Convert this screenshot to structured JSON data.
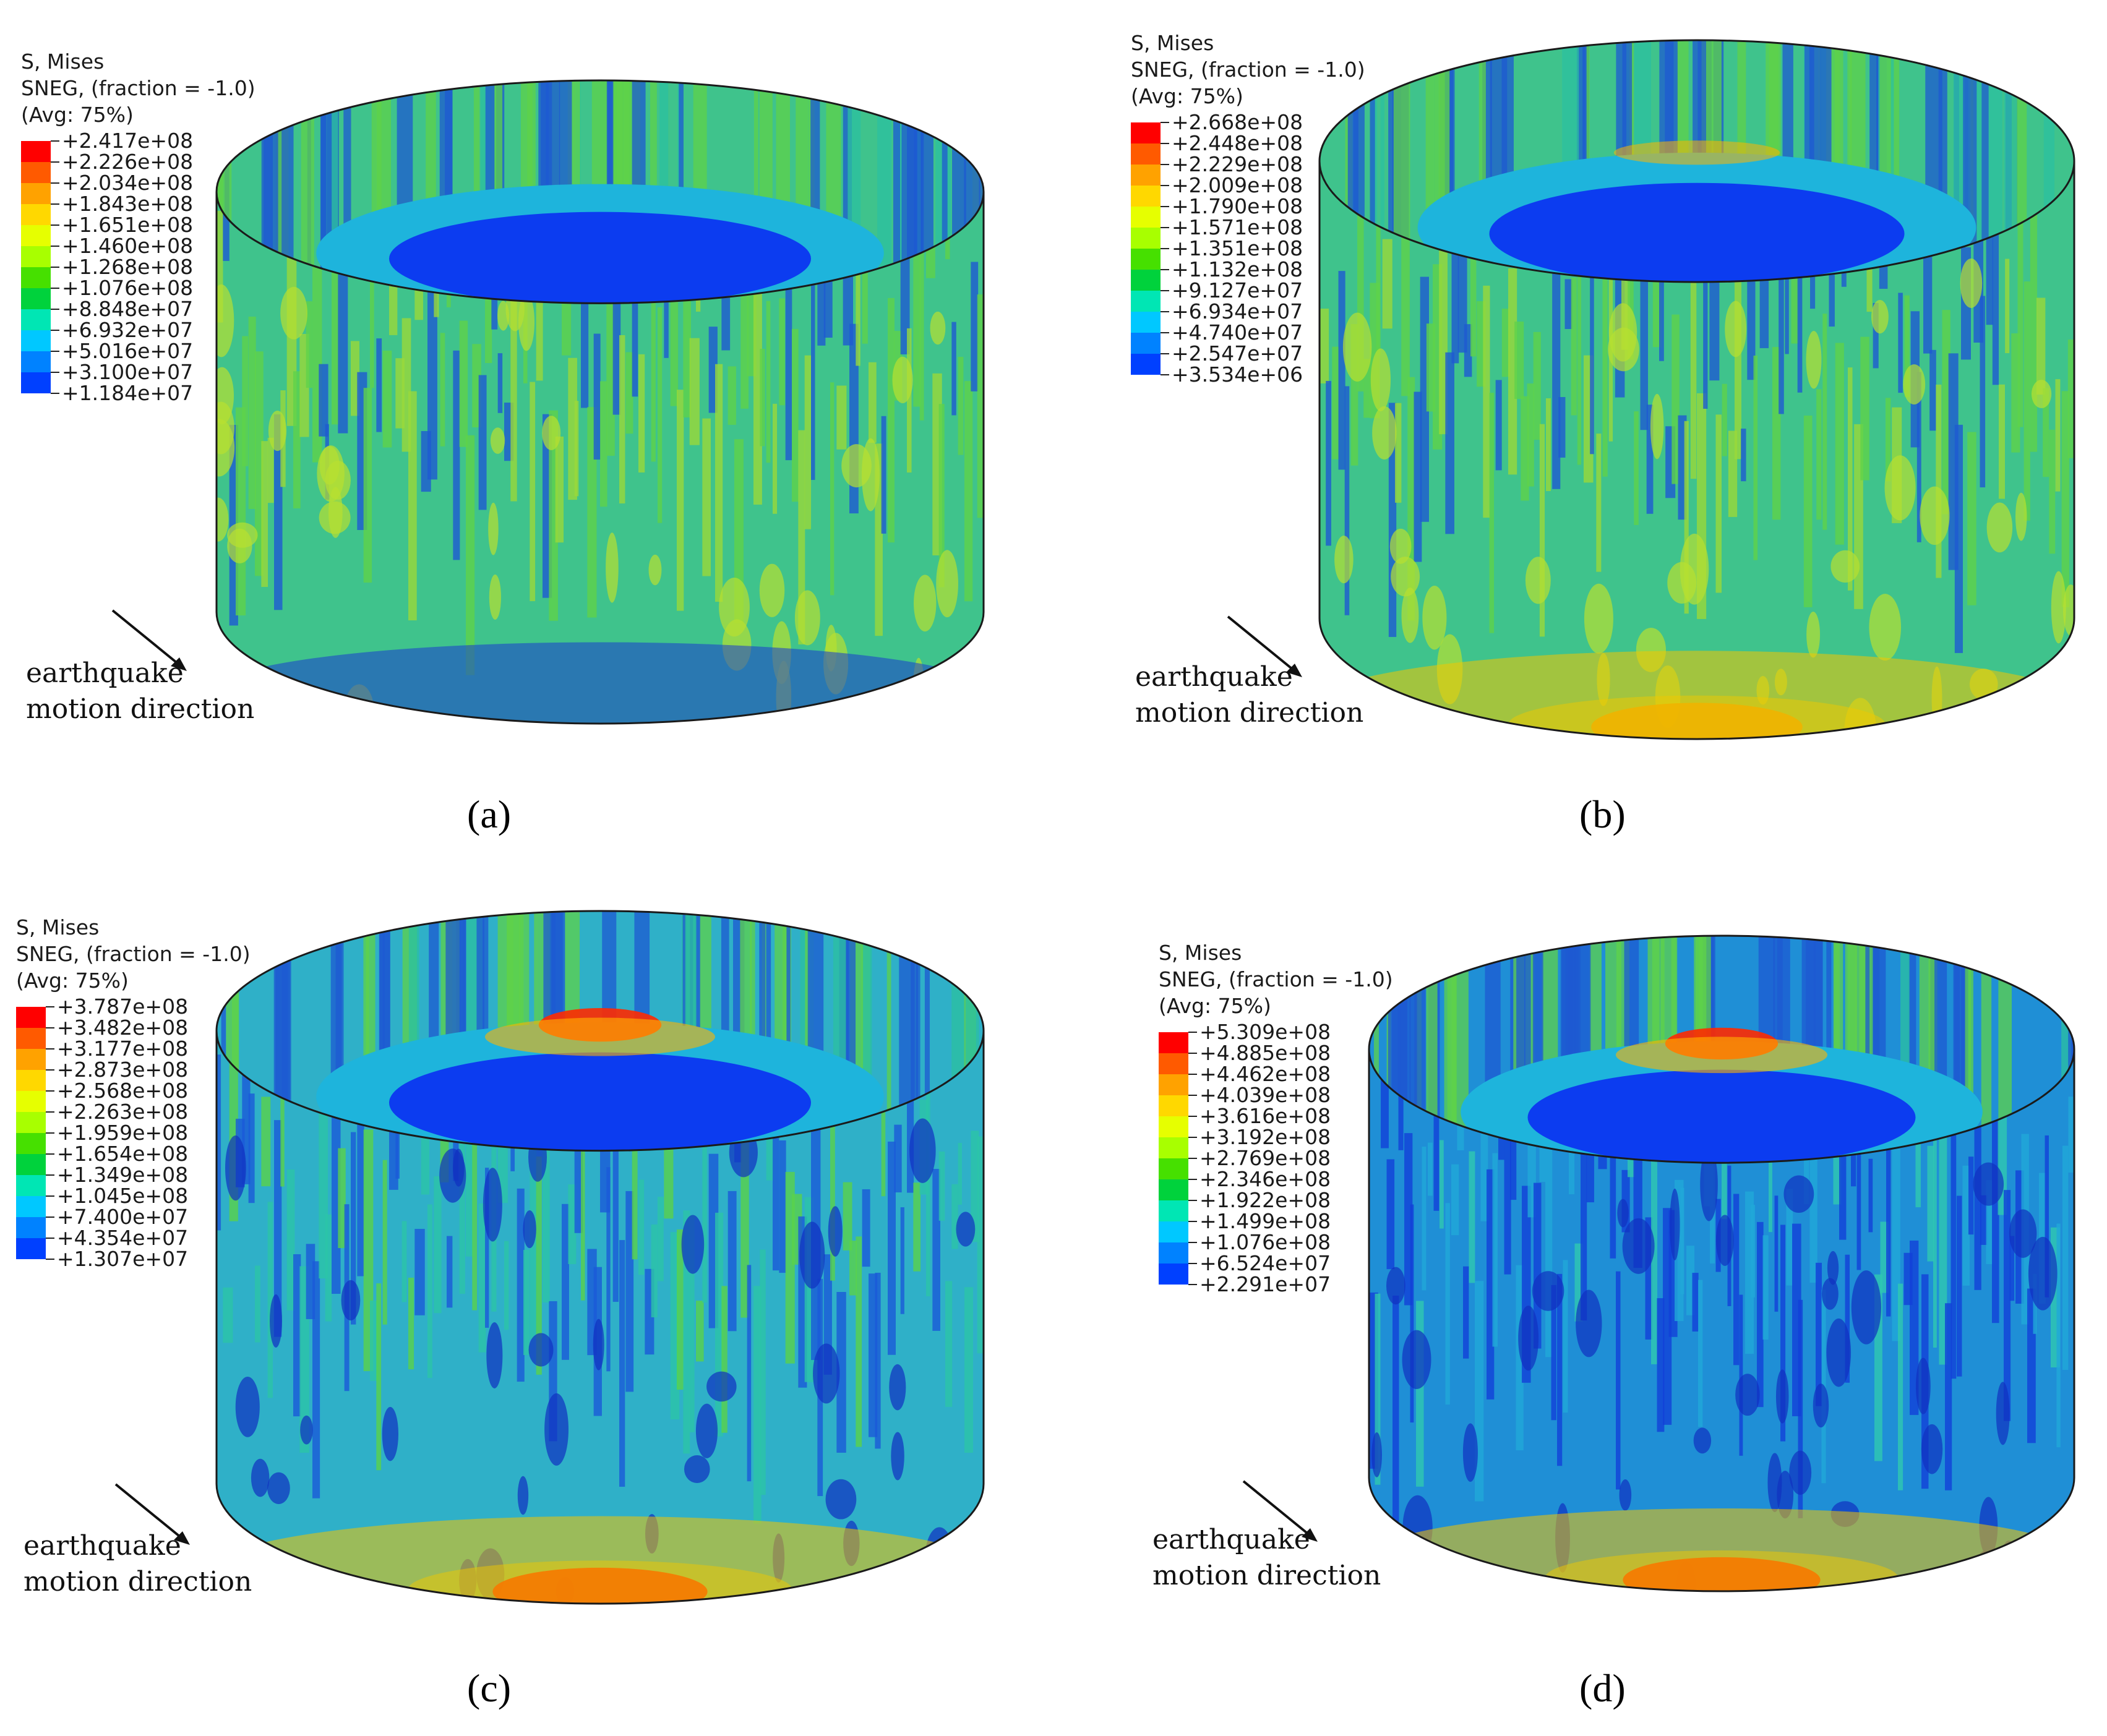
{
  "panels": [
    {
      "caption": "(a)",
      "legend": {
        "line1": "S, Mises",
        "line2": "SNEG, (fraction = -1.0)",
        "line3": "(Avg: 75%)",
        "values": [
          "+2.417e+08",
          "+2.226e+08",
          "+2.034e+08",
          "+1.843e+08",
          "+1.651e+08",
          "+1.460e+08",
          "+1.268e+08",
          "+1.076e+08",
          "+8.848e+07",
          "+6.932e+07",
          "+5.016e+07",
          "+3.100e+07",
          "+1.184e+07"
        ]
      },
      "direction_label_1": "earthquake",
      "direction_label_2": "motion direction"
    },
    {
      "caption": "(b)",
      "legend": {
        "line1": "S, Mises",
        "line2": "SNEG, (fraction = -1.0)",
        "line3": "(Avg: 75%)",
        "values": [
          "+2.668e+08",
          "+2.448e+08",
          "+2.229e+08",
          "+2.009e+08",
          "+1.790e+08",
          "+1.571e+08",
          "+1.351e+08",
          "+1.132e+08",
          "+9.127e+07",
          "+6.934e+07",
          "+4.740e+07",
          "+2.547e+07",
          "+3.534e+06"
        ]
      },
      "direction_label_1": "earthquake",
      "direction_label_2": "motion direction"
    },
    {
      "caption": "(c)",
      "legend": {
        "line1": "S, Mises",
        "line2": "SNEG, (fraction = -1.0)",
        "line3": "(Avg: 75%)",
        "values": [
          "+3.787e+08",
          "+3.482e+08",
          "+3.177e+08",
          "+2.873e+08",
          "+2.568e+08",
          "+2.263e+08",
          "+1.959e+08",
          "+1.654e+08",
          "+1.349e+08",
          "+1.045e+08",
          "+7.400e+07",
          "+4.354e+07",
          "+1.307e+07"
        ]
      },
      "direction_label_1": "earthquake",
      "direction_label_2": "motion direction"
    },
    {
      "caption": "(d)",
      "legend": {
        "line1": "S, Mises",
        "line2": "SNEG, (fraction = -1.0)",
        "line3": "(Avg: 75%)",
        "values": [
          "+5.309e+08",
          "+4.885e+08",
          "+4.462e+08",
          "+4.039e+08",
          "+3.616e+08",
          "+3.192e+08",
          "+2.769e+08",
          "+2.346e+08",
          "+1.922e+08",
          "+1.499e+08",
          "+1.076e+08",
          "+6.524e+07",
          "+2.291e+07"
        ]
      },
      "direction_label_1": "earthquake",
      "direction_label_2": "motion direction"
    }
  ],
  "colormap": [
    "#ff0000",
    "#ff5a00",
    "#ffa200",
    "#ffd800",
    "#e6ff00",
    "#a8ff00",
    "#46e000",
    "#00d23c",
    "#00e6b4",
    "#00c8ff",
    "#0082ff",
    "#0040ff",
    "#0000e0"
  ],
  "tank_colors": {
    "wall_base": "#3fc38c",
    "wall_blue": "#1e5ad2",
    "wall_green": "#5fd24a",
    "wall_hot": "#f0a000",
    "floor_outer": "#1eb4dc",
    "floor_inner": "#0c3cf0",
    "edge": "#1a1a1a"
  }
}
